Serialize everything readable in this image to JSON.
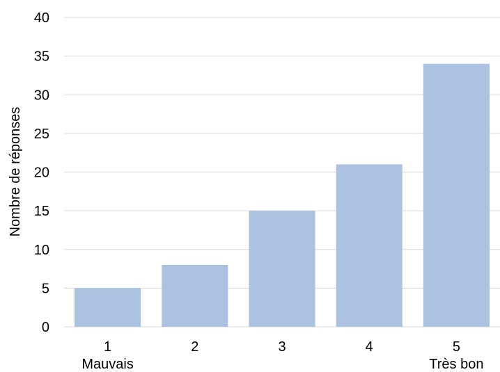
{
  "chart_data": {
    "type": "bar",
    "categories": [
      "1",
      "2",
      "3",
      "4",
      "5"
    ],
    "category_sublabels": [
      "Mauvais",
      "",
      "",
      "",
      "Très bon"
    ],
    "values": [
      5,
      8,
      15,
      21,
      34
    ],
    "title": "",
    "xlabel": "",
    "ylabel": "Nombre de réponses",
    "ylim": [
      0,
      40
    ],
    "yticks": [
      "0",
      "5",
      "10",
      "15",
      "20",
      "25",
      "30",
      "35",
      "40"
    ],
    "grid": true,
    "legend": "none",
    "bar_color": "#abc3e1",
    "grid_color": "#d9d9d9"
  }
}
